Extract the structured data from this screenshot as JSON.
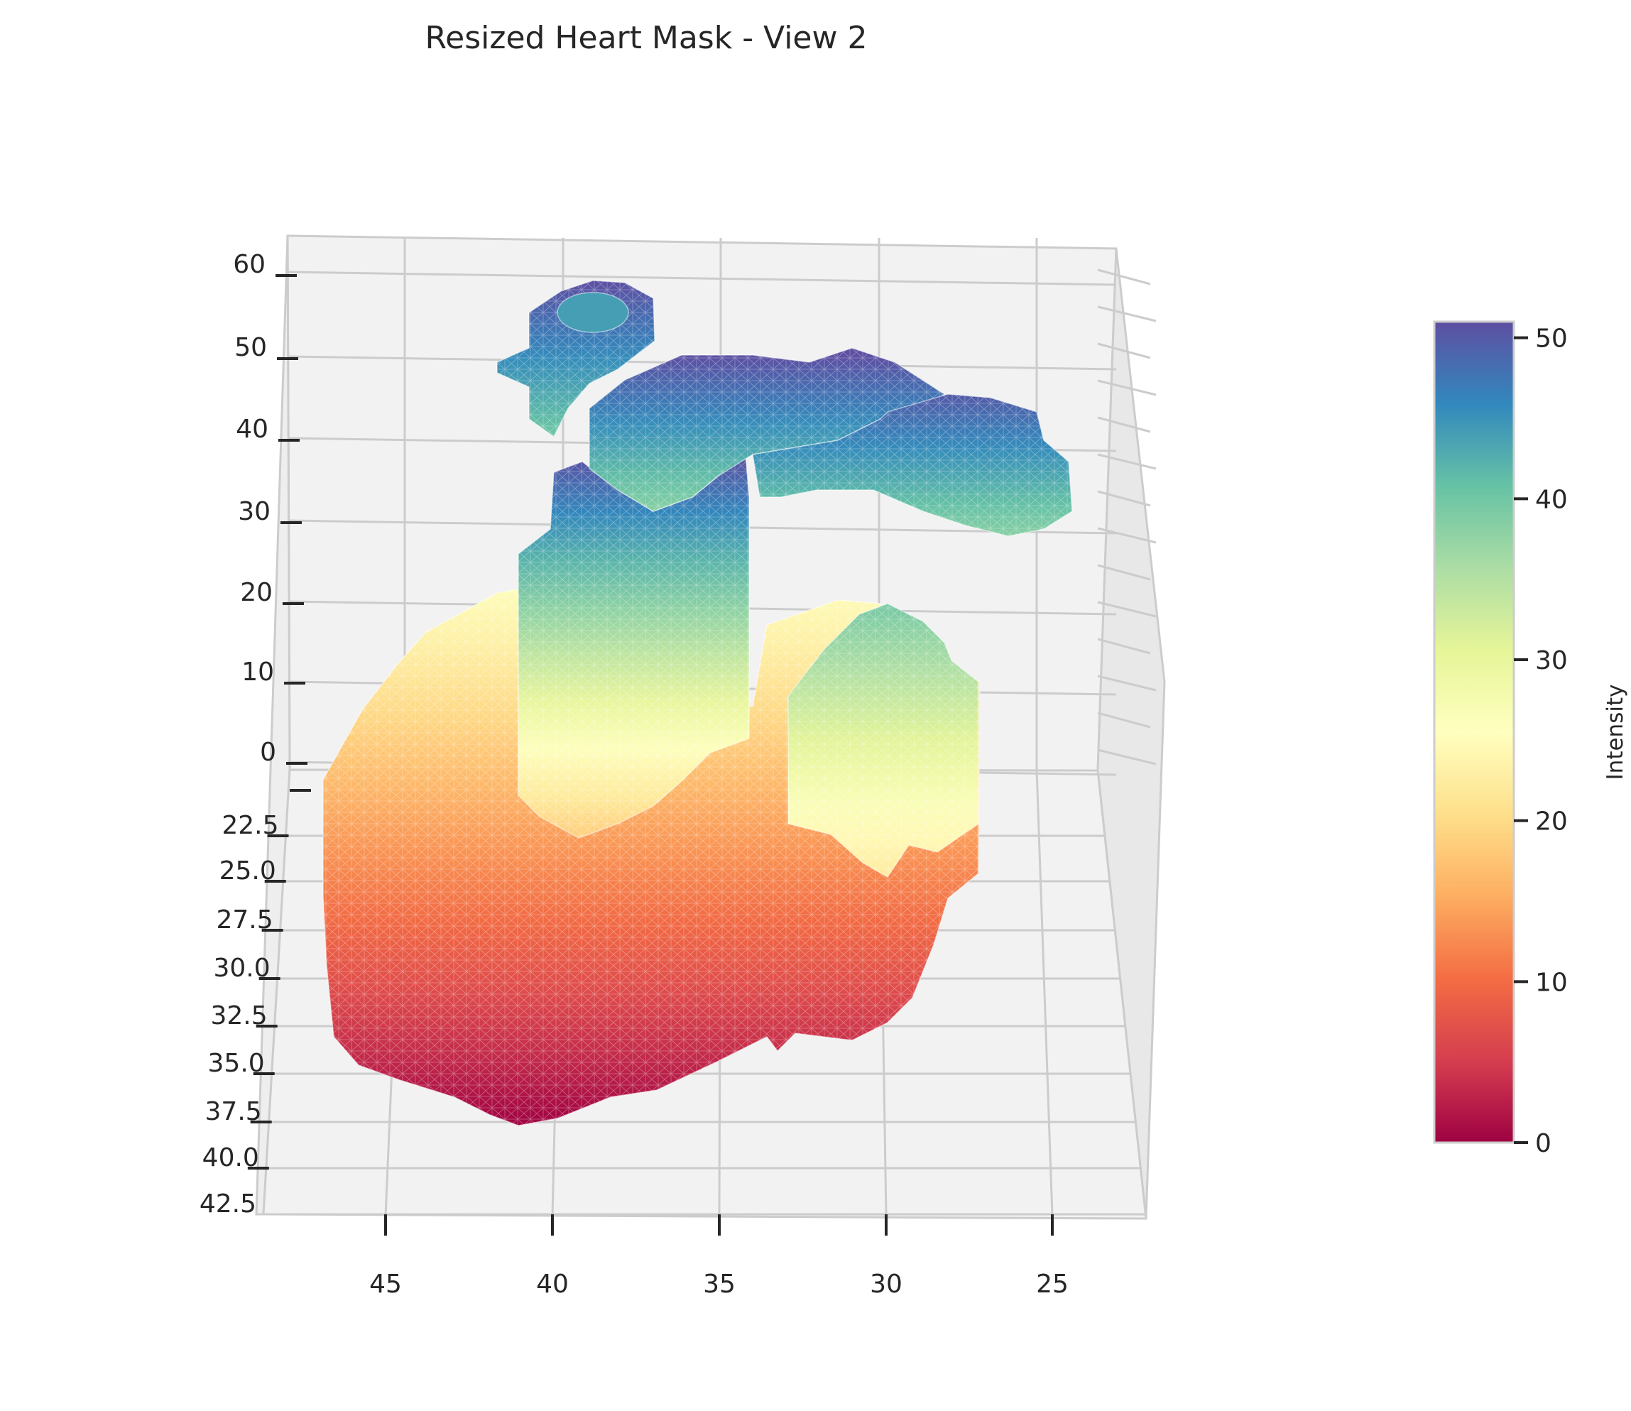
{
  "chart_data": {
    "type": "surface",
    "title": "Resized Heart Mask - View 2",
    "xlabel": "",
    "ylabel": "",
    "zlabel": "",
    "x_ticks": [
      "45",
      "40",
      "35",
      "30",
      "25"
    ],
    "x_tick_values": [
      45,
      40,
      35,
      30,
      25
    ],
    "y_ticks": [
      "22.5",
      "25.0",
      "27.5",
      "30.0",
      "32.5",
      "35.0",
      "37.5",
      "40.0",
      "42.5"
    ],
    "y_tick_values": [
      22.5,
      25.0,
      27.5,
      30.0,
      32.5,
      35.0,
      37.5,
      40.0,
      42.5
    ],
    "z_ticks": [
      "60",
      "50",
      "40",
      "30",
      "20",
      "10",
      "0"
    ],
    "z_tick_values": [
      60,
      50,
      40,
      30,
      20,
      10,
      0
    ],
    "colormap": "Spectral",
    "colorbar": {
      "label": "Intensity",
      "ticks": [
        "0",
        "10",
        "20",
        "30",
        "40",
        "50"
      ],
      "tick_values": [
        0,
        10,
        20,
        30,
        40,
        50
      ],
      "range": [
        0,
        51
      ]
    },
    "grid": true,
    "pane_color": "#f2f2f2",
    "grid_color": "#cccccc",
    "structures": [
      {
        "part": "base chamber",
        "z_range": [
          0,
          26
        ]
      },
      {
        "part": "left column",
        "z_range": [
          18,
          50
        ]
      },
      {
        "part": "upper plate",
        "z_range": [
          36,
          51
        ]
      },
      {
        "part": "right arm",
        "z_range": [
          38,
          50
        ]
      },
      {
        "part": "small top ring",
        "z_range": [
          40,
          51
        ]
      },
      {
        "part": "right tower",
        "z_range": [
          22,
          40
        ]
      }
    ]
  }
}
